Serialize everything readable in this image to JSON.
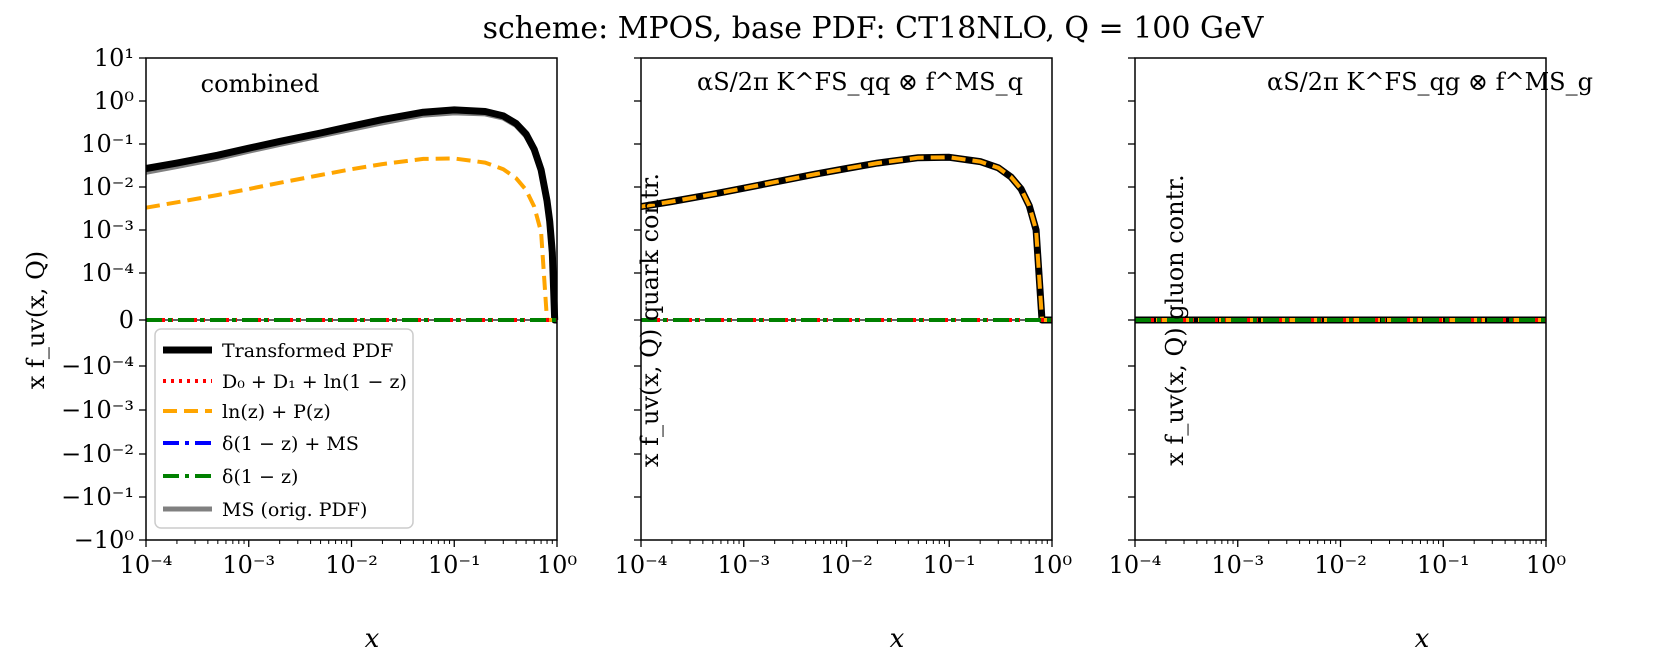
{
  "figure": {
    "title": "scheme: MPOS, base PDF: CT18NLO, Q = 100 GeV"
  },
  "axis": {
    "x_label": "x",
    "x_ticks": [
      "10⁻⁴",
      "10⁻³",
      "10⁻²",
      "10⁻¹",
      "10⁰"
    ],
    "y_ticks": [
      "10¹",
      "10⁰",
      "10⁻¹",
      "10⁻²",
      "10⁻³",
      "10⁻⁴",
      "0",
      "−10⁻⁴",
      "−10⁻³",
      "−10⁻²",
      "−10⁻¹",
      "−10⁰"
    ],
    "y_label_panel1": "x f_uv(x, Q)",
    "y_label_panel2": "x f_uv(x, Q) quark contr.",
    "y_label_panel3": "x f_uv(x, Q) gluon contr."
  },
  "annotations": {
    "panel1": "combined",
    "panel2": "αS/2π K^FS_qq ⊗ f^MS_q",
    "panel3": "αS/2π K^FS_qg ⊗ f^MS_g"
  },
  "legend": [
    {
      "label": "Transformed PDF",
      "color": "#000000",
      "style": "solid"
    },
    {
      "label": "D₀ + D₁ + ln(1 − z)",
      "color": "#ff0000",
      "style": "dotted"
    },
    {
      "label": "ln(z) + P(z)",
      "color": "#ffa500",
      "style": "dashed"
    },
    {
      "label": "δ(1 − z) + MS",
      "color": "#0000ff",
      "style": "dashdot"
    },
    {
      "label": "δ(1 − z)",
      "color": "#008000",
      "style": "dashdot"
    },
    {
      "label": "MS (orig. PDF)",
      "color": "#808080",
      "style": "solid"
    }
  ],
  "chart_data": [
    {
      "type": "line",
      "panel": "combined",
      "x_scale": "log",
      "y_scale": "symlog",
      "xlim": [
        0.0001,
        1
      ],
      "ylim": [
        -1,
        10
      ],
      "x": [
        0.0001,
        0.0002,
        0.0005,
        0.001,
        0.002,
        0.005,
        0.01,
        0.02,
        0.05,
        0.1,
        0.2,
        0.3,
        0.4,
        0.5,
        0.6,
        0.7,
        0.8,
        0.85,
        0.9,
        0.95,
        1.0
      ],
      "series": [
        {
          "name": "Transformed PDF",
          "values": [
            0.027,
            0.036,
            0.055,
            0.08,
            0.115,
            0.18,
            0.26,
            0.37,
            0.55,
            0.62,
            0.57,
            0.45,
            0.3,
            0.17,
            0.075,
            0.025,
            0.0048,
            0.0016,
            0.0003,
            2e-05,
            0
          ]
        },
        {
          "name": "D₀ + D₁ + ln(1 − z)",
          "values": [
            0,
            0,
            0,
            0,
            0,
            0,
            0,
            0,
            0,
            0,
            0,
            0,
            0,
            0,
            0,
            0,
            0,
            0,
            0,
            0,
            0
          ]
        },
        {
          "name": "ln(z) + P(z)",
          "values": [
            0.0033,
            0.0044,
            0.0065,
            0.009,
            0.0125,
            0.019,
            0.026,
            0.034,
            0.045,
            0.046,
            0.037,
            0.026,
            0.016,
            0.0085,
            0.0035,
            0.0009,
            8e-05,
            1e-05,
            0,
            0,
            0
          ]
        },
        {
          "name": "δ(1 − z) + MS",
          "values": [
            0,
            0,
            0,
            0,
            0,
            0,
            0,
            0,
            0,
            0,
            0,
            0,
            0,
            0,
            0,
            0,
            0,
            0,
            0,
            0,
            0
          ]
        },
        {
          "name": "δ(1 − z)",
          "values": [
            0,
            0,
            0,
            0,
            0,
            0,
            0,
            0,
            0,
            0,
            0,
            0,
            0,
            0,
            0,
            0,
            0,
            0,
            0,
            0,
            0
          ]
        },
        {
          "name": "MS (orig. PDF)",
          "values": [
            0.022,
            0.03,
            0.046,
            0.068,
            0.098,
            0.155,
            0.22,
            0.31,
            0.47,
            0.53,
            0.5,
            0.4,
            0.27,
            0.15,
            0.068,
            0.023,
            0.0045,
            0.0015,
            0.0003,
            2e-05,
            0
          ]
        }
      ]
    },
    {
      "type": "line",
      "panel": "quark contr.",
      "x_scale": "log",
      "y_scale": "symlog",
      "xlim": [
        0.0001,
        1
      ],
      "ylim": [
        -1,
        10
      ],
      "x": [
        0.0001,
        0.0002,
        0.0005,
        0.001,
        0.002,
        0.005,
        0.01,
        0.02,
        0.05,
        0.1,
        0.2,
        0.3,
        0.4,
        0.5,
        0.6,
        0.7,
        0.8,
        0.85,
        0.9,
        0.95,
        1.0
      ],
      "series": [
        {
          "name": "Transformed PDF",
          "values": [
            0.0035,
            0.0046,
            0.0068,
            0.0094,
            0.013,
            0.02,
            0.027,
            0.036,
            0.048,
            0.049,
            0.039,
            0.028,
            0.017,
            0.009,
            0.0037,
            0.001,
            9e-05,
            1e-05,
            0,
            0,
            0
          ]
        },
        {
          "name": "D₀ + D₁ + ln(1 − z)",
          "values": [
            0,
            0,
            0,
            0,
            0,
            0,
            0,
            0,
            0,
            0,
            0,
            0,
            0,
            0,
            0,
            0,
            0,
            0,
            0,
            0,
            0
          ]
        },
        {
          "name": "ln(z) + P(z)",
          "values": [
            0.0035,
            0.0046,
            0.0068,
            0.0094,
            0.013,
            0.02,
            0.027,
            0.036,
            0.048,
            0.049,
            0.039,
            0.028,
            0.017,
            0.009,
            0.0037,
            0.001,
            9e-05,
            1e-05,
            0,
            0,
            0
          ]
        },
        {
          "name": "δ(1 − z) + MS",
          "values": [
            0,
            0,
            0,
            0,
            0,
            0,
            0,
            0,
            0,
            0,
            0,
            0,
            0,
            0,
            0,
            0,
            0,
            0,
            0,
            0,
            0
          ]
        },
        {
          "name": "δ(1 − z)",
          "values": [
            0,
            0,
            0,
            0,
            0,
            0,
            0,
            0,
            0,
            0,
            0,
            0,
            0,
            0,
            0,
            0,
            0,
            0,
            0,
            0,
            0
          ]
        }
      ]
    },
    {
      "type": "line",
      "panel": "gluon contr.",
      "x_scale": "log",
      "y_scale": "symlog",
      "xlim": [
        0.0001,
        1
      ],
      "ylim": [
        -1,
        10
      ],
      "x": [
        0.0001,
        0.001,
        0.01,
        0.1,
        1.0
      ],
      "series": [
        {
          "name": "Transformed PDF",
          "values": [
            0,
            0,
            0,
            0,
            0
          ]
        },
        {
          "name": "D₀ + D₁ + ln(1 − z)",
          "values": [
            0,
            0,
            0,
            0,
            0
          ]
        },
        {
          "name": "ln(z) + P(z)",
          "values": [
            0,
            0,
            0,
            0,
            0
          ]
        },
        {
          "name": "δ(1 − z) + MS",
          "values": [
            0,
            0,
            0,
            0,
            0
          ]
        },
        {
          "name": "δ(1 − z)",
          "values": [
            0,
            0,
            0,
            0,
            0
          ]
        }
      ]
    }
  ]
}
